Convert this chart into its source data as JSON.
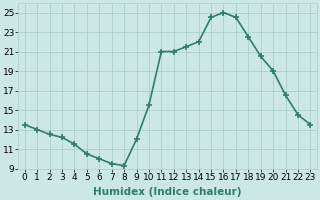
{
  "x": [
    0,
    1,
    2,
    3,
    4,
    5,
    6,
    7,
    8,
    9,
    10,
    11,
    12,
    13,
    14,
    15,
    16,
    17,
    18,
    19,
    20,
    21,
    22,
    23
  ],
  "y": [
    13.5,
    13.0,
    12.5,
    12.2,
    11.5,
    10.5,
    10.0,
    9.5,
    9.3,
    12.0,
    15.5,
    21.0,
    21.0,
    21.5,
    22.0,
    24.5,
    25.0,
    24.5,
    22.5,
    20.5,
    19.0,
    16.5,
    14.5,
    13.5
  ],
  "line_color": "#2e7d6e",
  "marker": "+",
  "marker_size": 4,
  "marker_linewidth": 1.2,
  "bg_color": "#cce8e5",
  "grid_color": "#aacfcc",
  "xlabel": "Humidex (Indice chaleur)",
  "xlim": [
    -0.5,
    23.5
  ],
  "ylim": [
    9,
    26
  ],
  "yticks": [
    9,
    11,
    13,
    15,
    17,
    19,
    21,
    23,
    25
  ],
  "xticks": [
    0,
    1,
    2,
    3,
    4,
    5,
    6,
    7,
    8,
    9,
    10,
    11,
    12,
    13,
    14,
    15,
    16,
    17,
    18,
    19,
    20,
    21,
    22,
    23
  ],
  "xlabel_fontsize": 7.5,
  "tick_fontsize": 6.5,
  "linewidth": 1.2,
  "figsize": [
    3.2,
    2.0
  ],
  "dpi": 100
}
